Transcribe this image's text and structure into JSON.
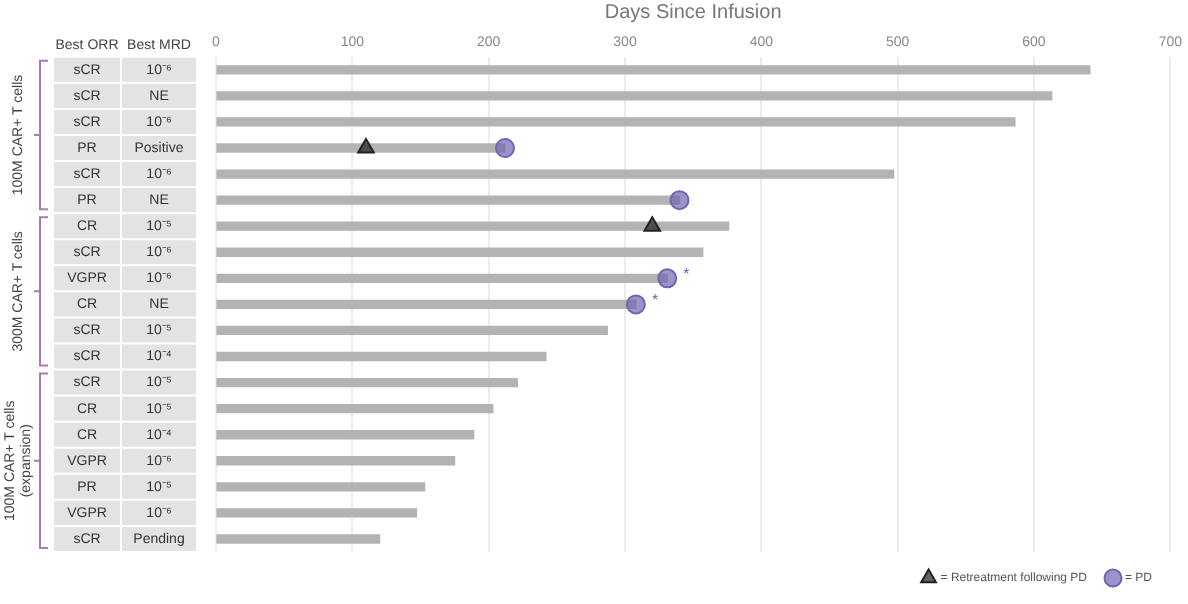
{
  "chart_data": {
    "type": "bar",
    "orientation": "horizontal",
    "xlabel": "Days Since Infusion",
    "categories": [
      "sCR",
      "sCR",
      "sCR",
      "PR",
      "sCR",
      "PR",
      "CR",
      "sCR",
      "VGPR",
      "CR",
      "sCR",
      "sCR",
      "sCR",
      "CR",
      "CR",
      "VGPR",
      "PR",
      "VGPR",
      "sCR"
    ],
    "y2_categories": [
      "10⁻⁶",
      "NE",
      "10⁻⁶",
      "Positive",
      "10⁻⁶",
      "NE",
      "10⁻⁵",
      "10⁻⁶",
      "10⁻⁶",
      "NE",
      "10⁻⁵",
      "10⁻⁴",
      "10⁻⁵",
      "10⁻⁵",
      "10⁻⁴",
      "10⁻⁶",
      "10⁻⁵",
      "10⁻⁶",
      "Pending"
    ],
    "series": [
      {
        "color": "#b3b3b3",
        "values": [
          641,
          613,
          586,
          212,
          497,
          340,
          376,
          357,
          331,
          308,
          287,
          242,
          221,
          203,
          189,
          175,
          153,
          147,
          120
        ]
      },
      {
        "type": "scatter",
        "name": "= Retreatment following PD",
        "color": "#222222",
        "marker": "triangle",
        "values": [
          null,
          null,
          null,
          110,
          null,
          null,
          320,
          null,
          null,
          null,
          null,
          null,
          null,
          null,
          null,
          null,
          null,
          null,
          null
        ]
      },
      {
        "type": "scatter",
        "name": "= PD",
        "color": "#7266b0",
        "marker": "circle",
        "values": [
          null,
          null,
          null,
          212,
          null,
          340,
          null,
          null,
          331,
          308,
          null,
          null,
          null,
          null,
          null,
          null,
          null,
          null,
          null
        ],
        "value_labels": [
          null,
          null,
          null,
          null,
          null,
          null,
          null,
          null,
          "*",
          "*",
          null,
          null,
          null,
          null,
          null,
          null,
          null,
          null,
          null
        ]
      }
    ],
    "xlim": [
      0,
      700
    ],
    "xticks": [
      0,
      100,
      200,
      300,
      400,
      500,
      600,
      700
    ],
    "grid": "x",
    "legend": "bottom right",
    "annotations": [
      "Best ORR",
      "Best MRD",
      "100M CAR+ T cells",
      "300M CAR+ T cells",
      "100M CAR+ T cells (expansion)"
    ]
  }
}
